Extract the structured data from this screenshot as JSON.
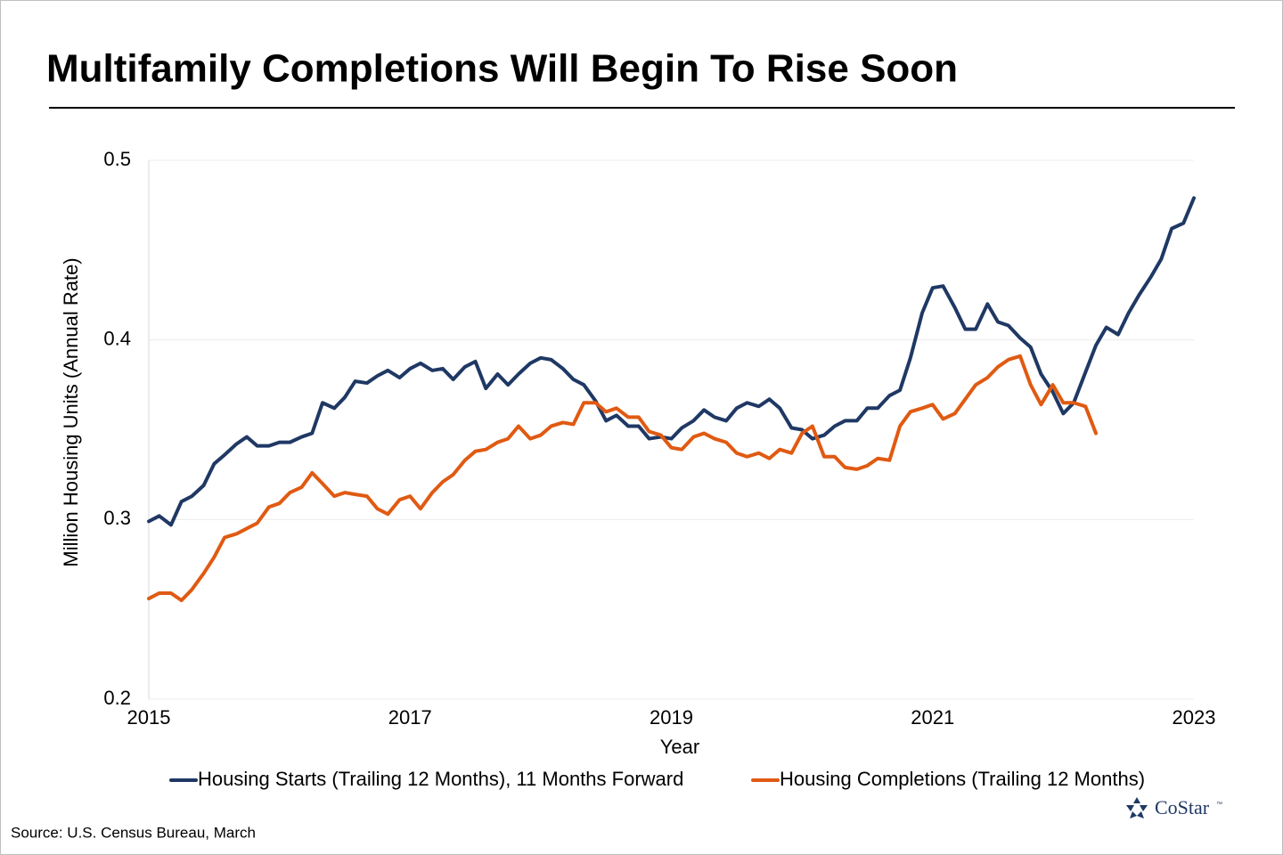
{
  "chart_data": {
    "type": "line",
    "title": "Multifamily Completions Will Begin To Rise Soon",
    "x_label": "Year",
    "y_label": "Million Housing Units (Annual Rate)",
    "source": "Source: U.S. Census Bureau, March",
    "logo": "CoStar",
    "logo_mark": "™",
    "xlim": [
      2015,
      2023
    ],
    "xticks": [
      2015,
      2017,
      2019,
      2021,
      2023
    ],
    "ylim": [
      0.2,
      0.5
    ],
    "yticks": [
      0.2,
      0.3,
      0.4,
      0.5
    ],
    "grid": true,
    "legend": "bottom",
    "x": [
      2015,
      2015.08,
      2015.17,
      2015.25,
      2015.33,
      2015.42,
      2015.5,
      2015.58,
      2015.67,
      2015.75,
      2015.83,
      2015.92,
      2016,
      2016.08,
      2016.17,
      2016.25,
      2016.33,
      2016.42,
      2016.5,
      2016.58,
      2016.67,
      2016.75,
      2016.83,
      2016.92,
      2017,
      2017.08,
      2017.17,
      2017.25,
      2017.33,
      2017.42,
      2017.5,
      2017.58,
      2017.67,
      2017.75,
      2017.83,
      2017.92,
      2018,
      2018.08,
      2018.17,
      2018.25,
      2018.33,
      2018.42,
      2018.5,
      2018.58,
      2018.67,
      2018.75,
      2018.83,
      2018.92,
      2019,
      2019.08,
      2019.17,
      2019.25,
      2019.33,
      2019.42,
      2019.5,
      2019.58,
      2019.67,
      2019.75,
      2019.83,
      2019.92,
      2020,
      2020.08,
      2020.17,
      2020.25,
      2020.33,
      2020.42,
      2020.5,
      2020.58,
      2020.67,
      2020.75,
      2020.83,
      2020.92,
      2021,
      2021.08,
      2021.17,
      2021.25,
      2021.33,
      2021.42,
      2021.5,
      2021.58,
      2021.67,
      2021.75,
      2021.83,
      2021.92,
      2022,
      2022.08,
      2022.17,
      2022.25,
      2022.33,
      2022.42,
      2022.5,
      2022.58,
      2022.67,
      2022.75,
      2022.83,
      2022.92,
      2023
    ],
    "series": [
      {
        "name": "Housing Starts (Trailing 12 Months), 11 Months Forward",
        "color": "#1f3864",
        "values": [
          0.299,
          0.302,
          0.297,
          0.31,
          0.313,
          0.319,
          0.331,
          0.336,
          0.342,
          0.346,
          0.341,
          0.341,
          0.343,
          0.343,
          0.346,
          0.348,
          0.365,
          0.362,
          0.368,
          0.377,
          0.376,
          0.38,
          0.383,
          0.379,
          0.384,
          0.387,
          0.383,
          0.384,
          0.378,
          0.385,
          0.388,
          0.373,
          0.381,
          0.375,
          0.381,
          0.387,
          0.39,
          0.389,
          0.384,
          0.378,
          0.375,
          0.366,
          0.355,
          0.358,
          0.352,
          0.352,
          0.345,
          0.346,
          0.345,
          0.351,
          0.355,
          0.361,
          0.357,
          0.355,
          0.362,
          0.365,
          0.363,
          0.367,
          0.362,
          0.351,
          0.35,
          0.345,
          0.347,
          0.352,
          0.355,
          0.355,
          0.362,
          0.362,
          0.369,
          0.372,
          0.39,
          0.415,
          0.429,
          0.43,
          0.418,
          0.406,
          0.406,
          0.42,
          0.41,
          0.408,
          0.401,
          0.396,
          0.381,
          0.371,
          0.359,
          0.365,
          0.382,
          0.397,
          0.407,
          0.403,
          0.415,
          0.425,
          0.435,
          0.445,
          0.462,
          0.465,
          0.479
        ]
      },
      {
        "name": "Housing Completions (Trailing 12 Months)",
        "color": "#e05a12",
        "values": [
          0.256,
          0.259,
          0.259,
          0.255,
          0.261,
          0.27,
          0.279,
          0.29,
          0.292,
          0.295,
          0.298,
          0.307,
          0.309,
          0.315,
          0.318,
          0.326,
          0.32,
          0.313,
          0.315,
          0.314,
          0.313,
          0.306,
          0.303,
          0.311,
          0.313,
          0.306,
          0.315,
          0.321,
          0.325,
          0.333,
          0.338,
          0.339,
          0.343,
          0.345,
          0.352,
          0.345,
          0.347,
          0.352,
          0.354,
          0.353,
          0.365,
          0.365,
          0.36,
          0.362,
          0.357,
          0.357,
          0.349,
          0.347,
          0.34,
          0.339,
          0.346,
          0.348,
          0.345,
          0.343,
          0.337,
          0.335,
          0.337,
          0.334,
          0.339,
          0.337,
          0.348,
          0.352,
          0.335,
          0.335,
          0.329,
          0.328,
          0.33,
          0.334,
          0.333,
          0.352,
          0.36,
          0.362,
          0.364,
          0.356,
          0.359,
          0.367,
          0.375,
          0.379,
          0.385,
          0.389,
          0.391,
          0.375,
          0.364,
          0.375,
          0.365,
          0.365,
          0.363,
          0.348,
          null,
          null,
          null,
          null,
          null,
          null,
          null,
          null,
          null
        ]
      }
    ]
  }
}
